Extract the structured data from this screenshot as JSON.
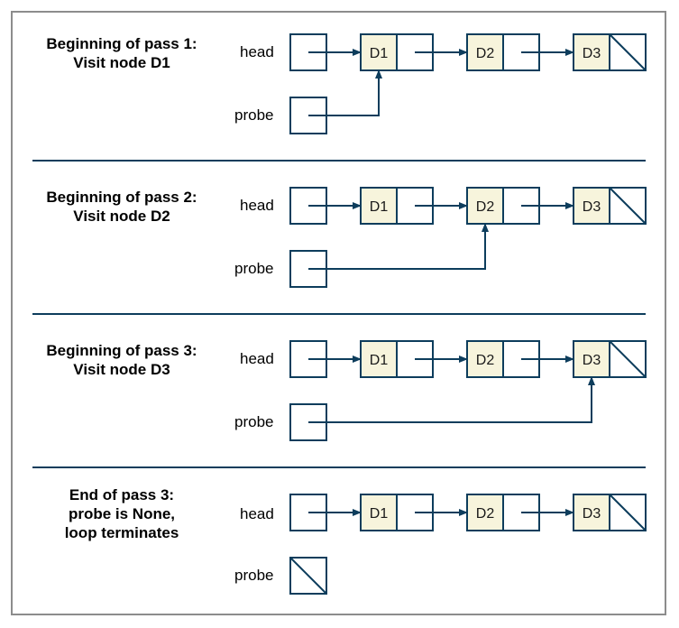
{
  "colors": {
    "ink": "#0d3d5c",
    "node_fill": "#f7f4dc",
    "frame_border": "#8c8c8c",
    "background": "#ffffff"
  },
  "panels": [
    {
      "title": [
        "Beginning of pass 1:",
        "Visit node D1"
      ],
      "head_label": "head",
      "probe_label": "probe",
      "nodes": [
        "D1",
        "D2",
        "D3"
      ],
      "probe_target": "D1"
    },
    {
      "title": [
        "Beginning of pass 2:",
        "Visit node D2"
      ],
      "head_label": "head",
      "probe_label": "probe",
      "nodes": [
        "D1",
        "D2",
        "D3"
      ],
      "probe_target": "D2"
    },
    {
      "title": [
        "Beginning of pass 3:",
        "Visit node D3"
      ],
      "head_label": "head",
      "probe_label": "probe",
      "nodes": [
        "D1",
        "D2",
        "D3"
      ],
      "probe_target": "D3"
    },
    {
      "title": [
        "End of pass 3:",
        "probe is None,",
        "loop terminates"
      ],
      "head_label": "head",
      "probe_label": "probe",
      "nodes": [
        "D1",
        "D2",
        "D3"
      ],
      "probe_target": null
    }
  ]
}
